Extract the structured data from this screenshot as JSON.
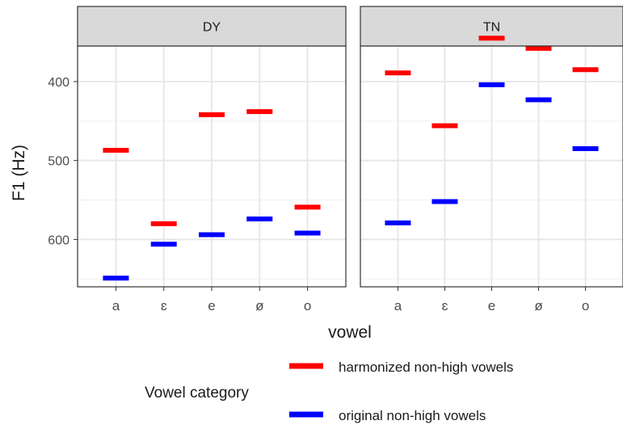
{
  "chart_data": {
    "type": "scatter",
    "mark": "horizontal dash",
    "facets": [
      "DY",
      "TN"
    ],
    "categories": [
      "a",
      "ɛ",
      "e",
      "ø",
      "o"
    ],
    "xlabel": "vowel",
    "ylabel": "F1 (Hz)",
    "y_reversed": true,
    "ylim": [
      355,
      660
    ],
    "yticks": [
      400,
      500,
      600
    ],
    "grid": true,
    "series": [
      {
        "name": "harmonized non-high vowels",
        "color": "#ff0000",
        "values": {
          "DY": [
            487,
            580,
            442,
            438,
            559
          ],
          "TN": [
            389,
            456,
            345,
            358,
            385
          ]
        }
      },
      {
        "name": "original non-high vowels",
        "color": "#0000ff",
        "values": {
          "DY": [
            649,
            606,
            594,
            574,
            592
          ],
          "TN": [
            579,
            552,
            404,
            423,
            485
          ]
        }
      }
    ],
    "legend": {
      "title": "Vowel category",
      "position": "bottom"
    }
  }
}
